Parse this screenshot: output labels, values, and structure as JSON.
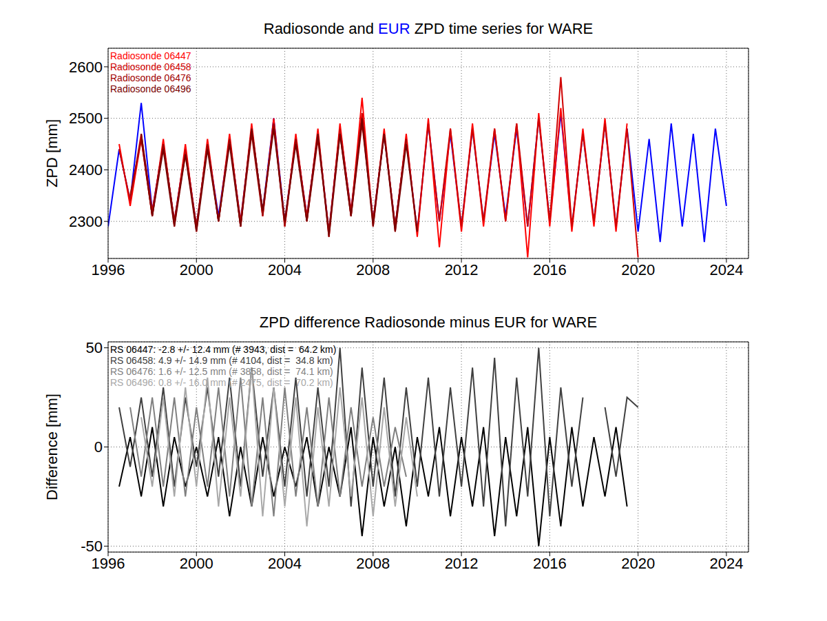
{
  "chart_data": [
    {
      "type": "line",
      "title": "Radiosonde and EUR ZPD time series for WARE",
      "ylabel": "ZPD [mm]",
      "x": [
        1996,
        1996.5,
        1997,
        1997.5,
        1998,
        1998.5,
        1999,
        1999.5,
        2000,
        2000.5,
        2001,
        2001.5,
        2002,
        2002.5,
        2003,
        2003.5,
        2004,
        2004.5,
        2005,
        2005.5,
        2006,
        2006.5,
        2007,
        2007.5,
        2008,
        2008.5,
        2009,
        2009.5,
        2010,
        2010.5,
        2011,
        2011.5,
        2012,
        2012.5,
        2013,
        2013.5,
        2014,
        2014.5,
        2015,
        2015.5,
        2016,
        2016.5,
        2017,
        2017.5,
        2018,
        2018.5,
        2019,
        2019.5,
        2020,
        2020.5,
        2021,
        2021.5,
        2022,
        2022.5,
        2023,
        2023.5,
        2024
      ],
      "xlim": [
        1996,
        2025
      ],
      "xticks": [
        1996,
        2000,
        2004,
        2008,
        2012,
        2016,
        2020,
        2024
      ],
      "ylim": [
        2228,
        2636
      ],
      "yticks": [
        2300,
        2400,
        2500,
        2600
      ],
      "grid": true,
      "legend": "upper left",
      "series": [
        {
          "name": "EUR",
          "color": "#0000ff",
          "values": [
            2290,
            2440,
            2340,
            2530,
            2320,
            2450,
            2300,
            2440,
            2290,
            2450,
            2310,
            2460,
            2300,
            2480,
            2320,
            2500,
            2300,
            2460,
            2310,
            2470,
            2280,
            2480,
            2320,
            2500,
            2300,
            2470,
            2290,
            2460,
            2280,
            2490,
            2300,
            2470,
            2290,
            2480,
            2300,
            2470,
            2310,
            2480,
            2290,
            2500,
            2300,
            2510,
            2290,
            2470,
            2300,
            2490,
            2290,
            2480,
            2280,
            2460,
            2260,
            2490,
            2290,
            2470,
            2260,
            2480,
            2330
          ]
        },
        {
          "name": "Radiosonde 06447",
          "color": "#ff0000",
          "values": [
            null,
            2450,
            2330,
            2460,
            2310,
            2460,
            2290,
            2450,
            2280,
            2460,
            2300,
            2470,
            2290,
            2490,
            2310,
            2500,
            2290,
            2470,
            2300,
            2480,
            2270,
            2490,
            2310,
            2540,
            2290,
            2480,
            2280,
            2470,
            2270,
            2500,
            2250,
            2480,
            2280,
            2490,
            2290,
            2480,
            2300,
            2490,
            2230,
            2510,
            2290,
            2520,
            2280,
            2480,
            2290,
            2500,
            2280,
            2490,
            null,
            null,
            null,
            null,
            null,
            null,
            null,
            null,
            null
          ]
        },
        {
          "name": "Radiosonde 06458",
          "color": "#d00000",
          "values": [
            null,
            2440,
            2340,
            2470,
            2320,
            2450,
            2300,
            2440,
            2290,
            2450,
            2300,
            2460,
            2300,
            2480,
            2320,
            2490,
            2300,
            2460,
            2310,
            2470,
            2280,
            2480,
            2320,
            2510,
            2300,
            2470,
            2290,
            2460,
            2280,
            2490,
            2300,
            2480,
            2290,
            2480,
            2300,
            2480,
            2300,
            2490,
            2290,
            2500,
            2300,
            2580,
            2290,
            2470,
            2300,
            2490,
            2290,
            2480,
            2230,
            null,
            null,
            null,
            null,
            null,
            null,
            null,
            null
          ]
        },
        {
          "name": "Radiosonde 06476",
          "color": "#a00000",
          "values": [
            null,
            null,
            2350,
            2460,
            2310,
            2450,
            2300,
            2430,
            2290,
            2450,
            2300,
            2460,
            2290,
            2470,
            2310,
            2490,
            2290,
            2460,
            2300,
            2460,
            2280,
            2470,
            2310,
            2490,
            2300,
            2470,
            2290,
            2460,
            null,
            null,
            null,
            null,
            null,
            null,
            null,
            null,
            null,
            null,
            null,
            null,
            null,
            null,
            null,
            null,
            null,
            null,
            null,
            null,
            null,
            null,
            null,
            null,
            null,
            null,
            null,
            null,
            null
          ]
        },
        {
          "name": "Radiosonde 06496",
          "color": "#7a0000",
          "values": [
            null,
            null,
            null,
            2470,
            2310,
            2440,
            2290,
            2430,
            2280,
            2440,
            2300,
            2450,
            2290,
            2480,
            2320,
            2480,
            2300,
            2450,
            2300,
            2470,
            2270,
            2470,
            2310,
            2500,
            2290,
            2470,
            2280,
            2450,
            2280,
            null,
            null,
            null,
            null,
            null,
            null,
            null,
            null,
            null,
            null,
            null,
            null,
            null,
            null,
            null,
            null,
            null,
            null,
            null,
            null,
            null,
            null,
            null,
            null,
            null,
            null,
            null,
            null
          ]
        }
      ]
    },
    {
      "type": "line",
      "title": "ZPD difference Radiosonde minus EUR for WARE",
      "ylabel": "Difference [mm]",
      "x": [
        1996,
        1996.5,
        1997,
        1997.5,
        1998,
        1998.5,
        1999,
        1999.5,
        2000,
        2000.5,
        2001,
        2001.5,
        2002,
        2002.5,
        2003,
        2003.5,
        2004,
        2004.5,
        2005,
        2005.5,
        2006,
        2006.5,
        2007,
        2007.5,
        2008,
        2008.5,
        2009,
        2009.5,
        2010,
        2010.5,
        2011,
        2011.5,
        2012,
        2012.5,
        2013,
        2013.5,
        2014,
        2014.5,
        2015,
        2015.5,
        2016,
        2016.5,
        2017,
        2017.5,
        2018,
        2018.5,
        2019,
        2019.5,
        2020,
        2020.5,
        2021,
        2021.5,
        2022,
        2022.5,
        2023,
        2023.5,
        2024
      ],
      "xlim": [
        1996,
        2025
      ],
      "xticks": [
        1996,
        2000,
        2004,
        2008,
        2012,
        2016,
        2020,
        2024
      ],
      "ylim": [
        -53,
        53
      ],
      "yticks": [
        -50,
        0,
        50
      ],
      "grid": true,
      "legend": "upper left",
      "series": [
        {
          "name": "RS 06447: -2.8 +/- 12.4 mm (# 3943, dist =  64.2 km)",
          "color": "#000000",
          "values": [
            null,
            -20,
            5,
            -25,
            10,
            -30,
            5,
            -20,
            0,
            -25,
            5,
            -35,
            0,
            -30,
            5,
            -25,
            0,
            -20,
            5,
            -30,
            0,
            -25,
            10,
            -45,
            5,
            -30,
            0,
            -40,
            5,
            -25,
            10,
            -35,
            5,
            -30,
            10,
            -45,
            5,
            -35,
            10,
            -50,
            5,
            -40,
            10,
            -30,
            5,
            -25,
            10,
            -30,
            null,
            null,
            null,
            null,
            null,
            null,
            null,
            null,
            null
          ]
        },
        {
          "name": "RS 06458: 4.9 +/- 14.9 mm (# 4104, dist =  34.8 km)",
          "color": "#404040",
          "values": [
            null,
            20,
            -10,
            25,
            -15,
            30,
            -20,
            25,
            -10,
            30,
            -15,
            35,
            -20,
            40,
            -15,
            30,
            -20,
            35,
            -25,
            30,
            -20,
            50,
            -30,
            40,
            -20,
            35,
            -25,
            30,
            -20,
            35,
            -25,
            30,
            -20,
            40,
            -30,
            45,
            -40,
            35,
            -25,
            50,
            -35,
            30,
            -20,
            25,
            null,
            20,
            -15,
            25,
            20,
            null,
            null,
            null,
            null,
            null,
            null,
            null,
            null
          ]
        },
        {
          "name": "RS 06476: 1.6 +/- 12.5 mm (# 3858, dist =  74.1 km)",
          "color": "#808080",
          "values": [
            null,
            null,
            20,
            -15,
            25,
            -20,
            25,
            -25,
            20,
            -20,
            30,
            -25,
            35,
            -30,
            25,
            -35,
            30,
            -25,
            20,
            -30,
            25,
            -25,
            20,
            -20,
            15,
            -20,
            10,
            -15,
            null,
            null,
            null,
            null,
            null,
            null,
            null,
            null,
            null,
            null,
            null,
            null,
            null,
            null,
            null,
            null,
            null,
            null,
            null,
            null,
            null,
            null,
            null,
            null,
            null,
            null,
            null,
            null,
            null
          ]
        },
        {
          "name": "RS 06496: 0.8 +/- 16.0 mm (# 2475, dist =  70.2 km)",
          "color": "#a8a8a8",
          "values": [
            null,
            null,
            null,
            15,
            -20,
            25,
            -25,
            30,
            -20,
            35,
            -30,
            25,
            -25,
            40,
            -35,
            30,
            -30,
            25,
            -40,
            20,
            -30,
            30,
            -25,
            25,
            -35,
            20,
            -30,
            15,
            -25,
            null,
            null,
            null,
            null,
            null,
            null,
            null,
            null,
            null,
            null,
            null,
            null,
            null,
            null,
            null,
            null,
            null,
            null,
            null,
            null,
            null,
            null,
            null,
            null,
            null,
            null,
            null,
            null
          ]
        }
      ]
    }
  ]
}
